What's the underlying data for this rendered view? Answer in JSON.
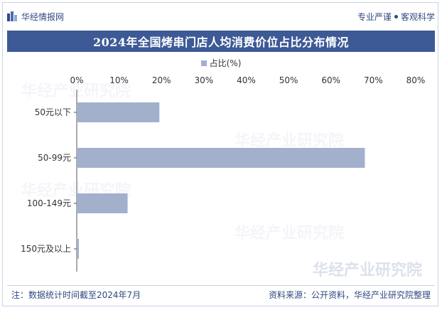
{
  "header": {
    "brand": "华经情报网",
    "slogan_left": "专业严谨",
    "slogan_right": "客观科学"
  },
  "title": "2024年全国烤串门店人均消费价位占比分布情况",
  "footer": {
    "note": "注：数据统计时间截至2024年7月",
    "source": "资料来源：公开资料，华经产业研究院整理"
  },
  "watermark": "华经产业研究院",
  "colors": {
    "bar": "#a3b0cc",
    "title_bg": "#3d5a96",
    "brand": "#2f4a80"
  },
  "chart_data": {
    "type": "bar",
    "orientation": "horizontal",
    "categories": [
      "50元以下",
      "50-99元",
      "100-149元",
      "150元及以上"
    ],
    "series": [
      {
        "name": "占比(%)",
        "values": [
          19.5,
          68.0,
          12.0,
          0.5
        ]
      }
    ],
    "xlim": [
      0,
      80
    ],
    "x_ticks": [
      "0%",
      "10%",
      "20%",
      "30%",
      "40%",
      "50%",
      "60%",
      "70%",
      "80%"
    ],
    "axis_position": "top",
    "legend_position": "top-center",
    "grid": false
  }
}
